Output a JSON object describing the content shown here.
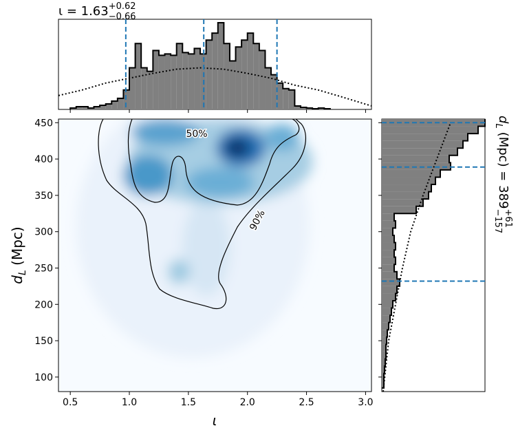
{
  "chart_data": [
    {
      "type": "density",
      "xlabel": "ι",
      "ylabel": {
        "symbol": "d",
        "sub": "L",
        "unit": " (Mpc)"
      },
      "xlim": [
        0.4,
        3.05
      ],
      "ylim": [
        80,
        455
      ],
      "xticks": [
        0.5,
        {
          "value": 1,
          "label": "1.0"
        },
        1.5,
        {
          "value": 2,
          "label": "2.0"
        },
        2.5,
        {
          "value": 3,
          "label": "3.0"
        }
      ],
      "yticks": [
        100,
        150,
        200,
        250,
        300,
        350,
        400,
        450
      ],
      "contour_labels": [
        "50%",
        "90%"
      ],
      "colormap": "Blues"
    },
    {
      "type": "histogram",
      "orientation": "vertical",
      "title": {
        "main": "ι = 1.63",
        "upper": "+0.62",
        "lower": "−0.66"
      },
      "xlim": [
        0.4,
        3.05
      ],
      "ylim": [
        0,
        130
      ],
      "bins": [
        0.5,
        0.55,
        0.6,
        0.65,
        0.7,
        0.75,
        0.8,
        0.85,
        0.9,
        0.95,
        1.0,
        1.05,
        1.1,
        1.15,
        1.2,
        1.25,
        1.3,
        1.35,
        1.4,
        1.45,
        1.5,
        1.55,
        1.6,
        1.65,
        1.7,
        1.75,
        1.8,
        1.85,
        1.9,
        1.95,
        2.0,
        2.05,
        2.1,
        2.15,
        2.2,
        2.25,
        2.3,
        2.35,
        2.4,
        2.45,
        2.5,
        2.55,
        2.6,
        2.65,
        2.7
      ],
      "values": [
        2,
        4,
        4,
        2,
        4,
        6,
        8,
        12,
        16,
        28,
        60,
        95,
        60,
        55,
        85,
        78,
        80,
        78,
        95,
        82,
        80,
        88,
        80,
        100,
        110,
        125,
        95,
        70,
        90,
        100,
        110,
        95,
        85,
        60,
        50,
        38,
        30,
        28,
        5,
        3,
        2,
        1,
        2,
        1
      ],
      "color": "#808080",
      "prior": {
        "x": [
          0.4,
          0.6,
          0.8,
          1.0,
          1.2,
          1.4,
          1.6,
          1.8,
          2.0,
          2.2,
          2.4,
          2.6,
          2.8,
          3.05
        ],
        "values": [
          20,
          28,
          38,
          45,
          52,
          58,
          60,
          58,
          52,
          45,
          35,
          28,
          18,
          5
        ]
      },
      "quantiles": [
        0.97,
        1.63,
        2.25
      ],
      "quantile_color": "#1f77b4"
    },
    {
      "type": "histogram",
      "orientation": "horizontal",
      "title": {
        "main": "(Mpc) = 389",
        "symbol": "d",
        "sub": "L",
        "upper": "+61",
        "lower": "−157"
      },
      "xlim": [
        0,
        150
      ],
      "ylim": [
        80,
        455
      ],
      "bins": [
        85,
        95,
        105,
        115,
        125,
        135,
        145,
        155,
        165,
        175,
        185,
        195,
        205,
        215,
        225,
        235,
        245,
        255,
        265,
        275,
        285,
        295,
        305,
        315,
        325,
        335,
        345,
        355,
        365,
        375,
        385,
        395,
        405,
        415,
        425,
        435,
        445,
        455
      ],
      "values": [
        3,
        3,
        4,
        5,
        6,
        6,
        7,
        8,
        10,
        12,
        14,
        16,
        20,
        22,
        26,
        22,
        18,
        20,
        18,
        20,
        18,
        16,
        20,
        18,
        50,
        60,
        68,
        72,
        78,
        85,
        100,
        98,
        110,
        118,
        125,
        140,
        150
      ],
      "color": "#808080",
      "prior": {
        "y": [
          80,
          150,
          200,
          250,
          300,
          350,
          400,
          450
        ],
        "values": [
          2,
          10,
          20,
          30,
          42,
          60,
          80,
          100
        ]
      },
      "quantiles": [
        232,
        389,
        450
      ],
      "quantile_color": "#1f77b4"
    }
  ]
}
